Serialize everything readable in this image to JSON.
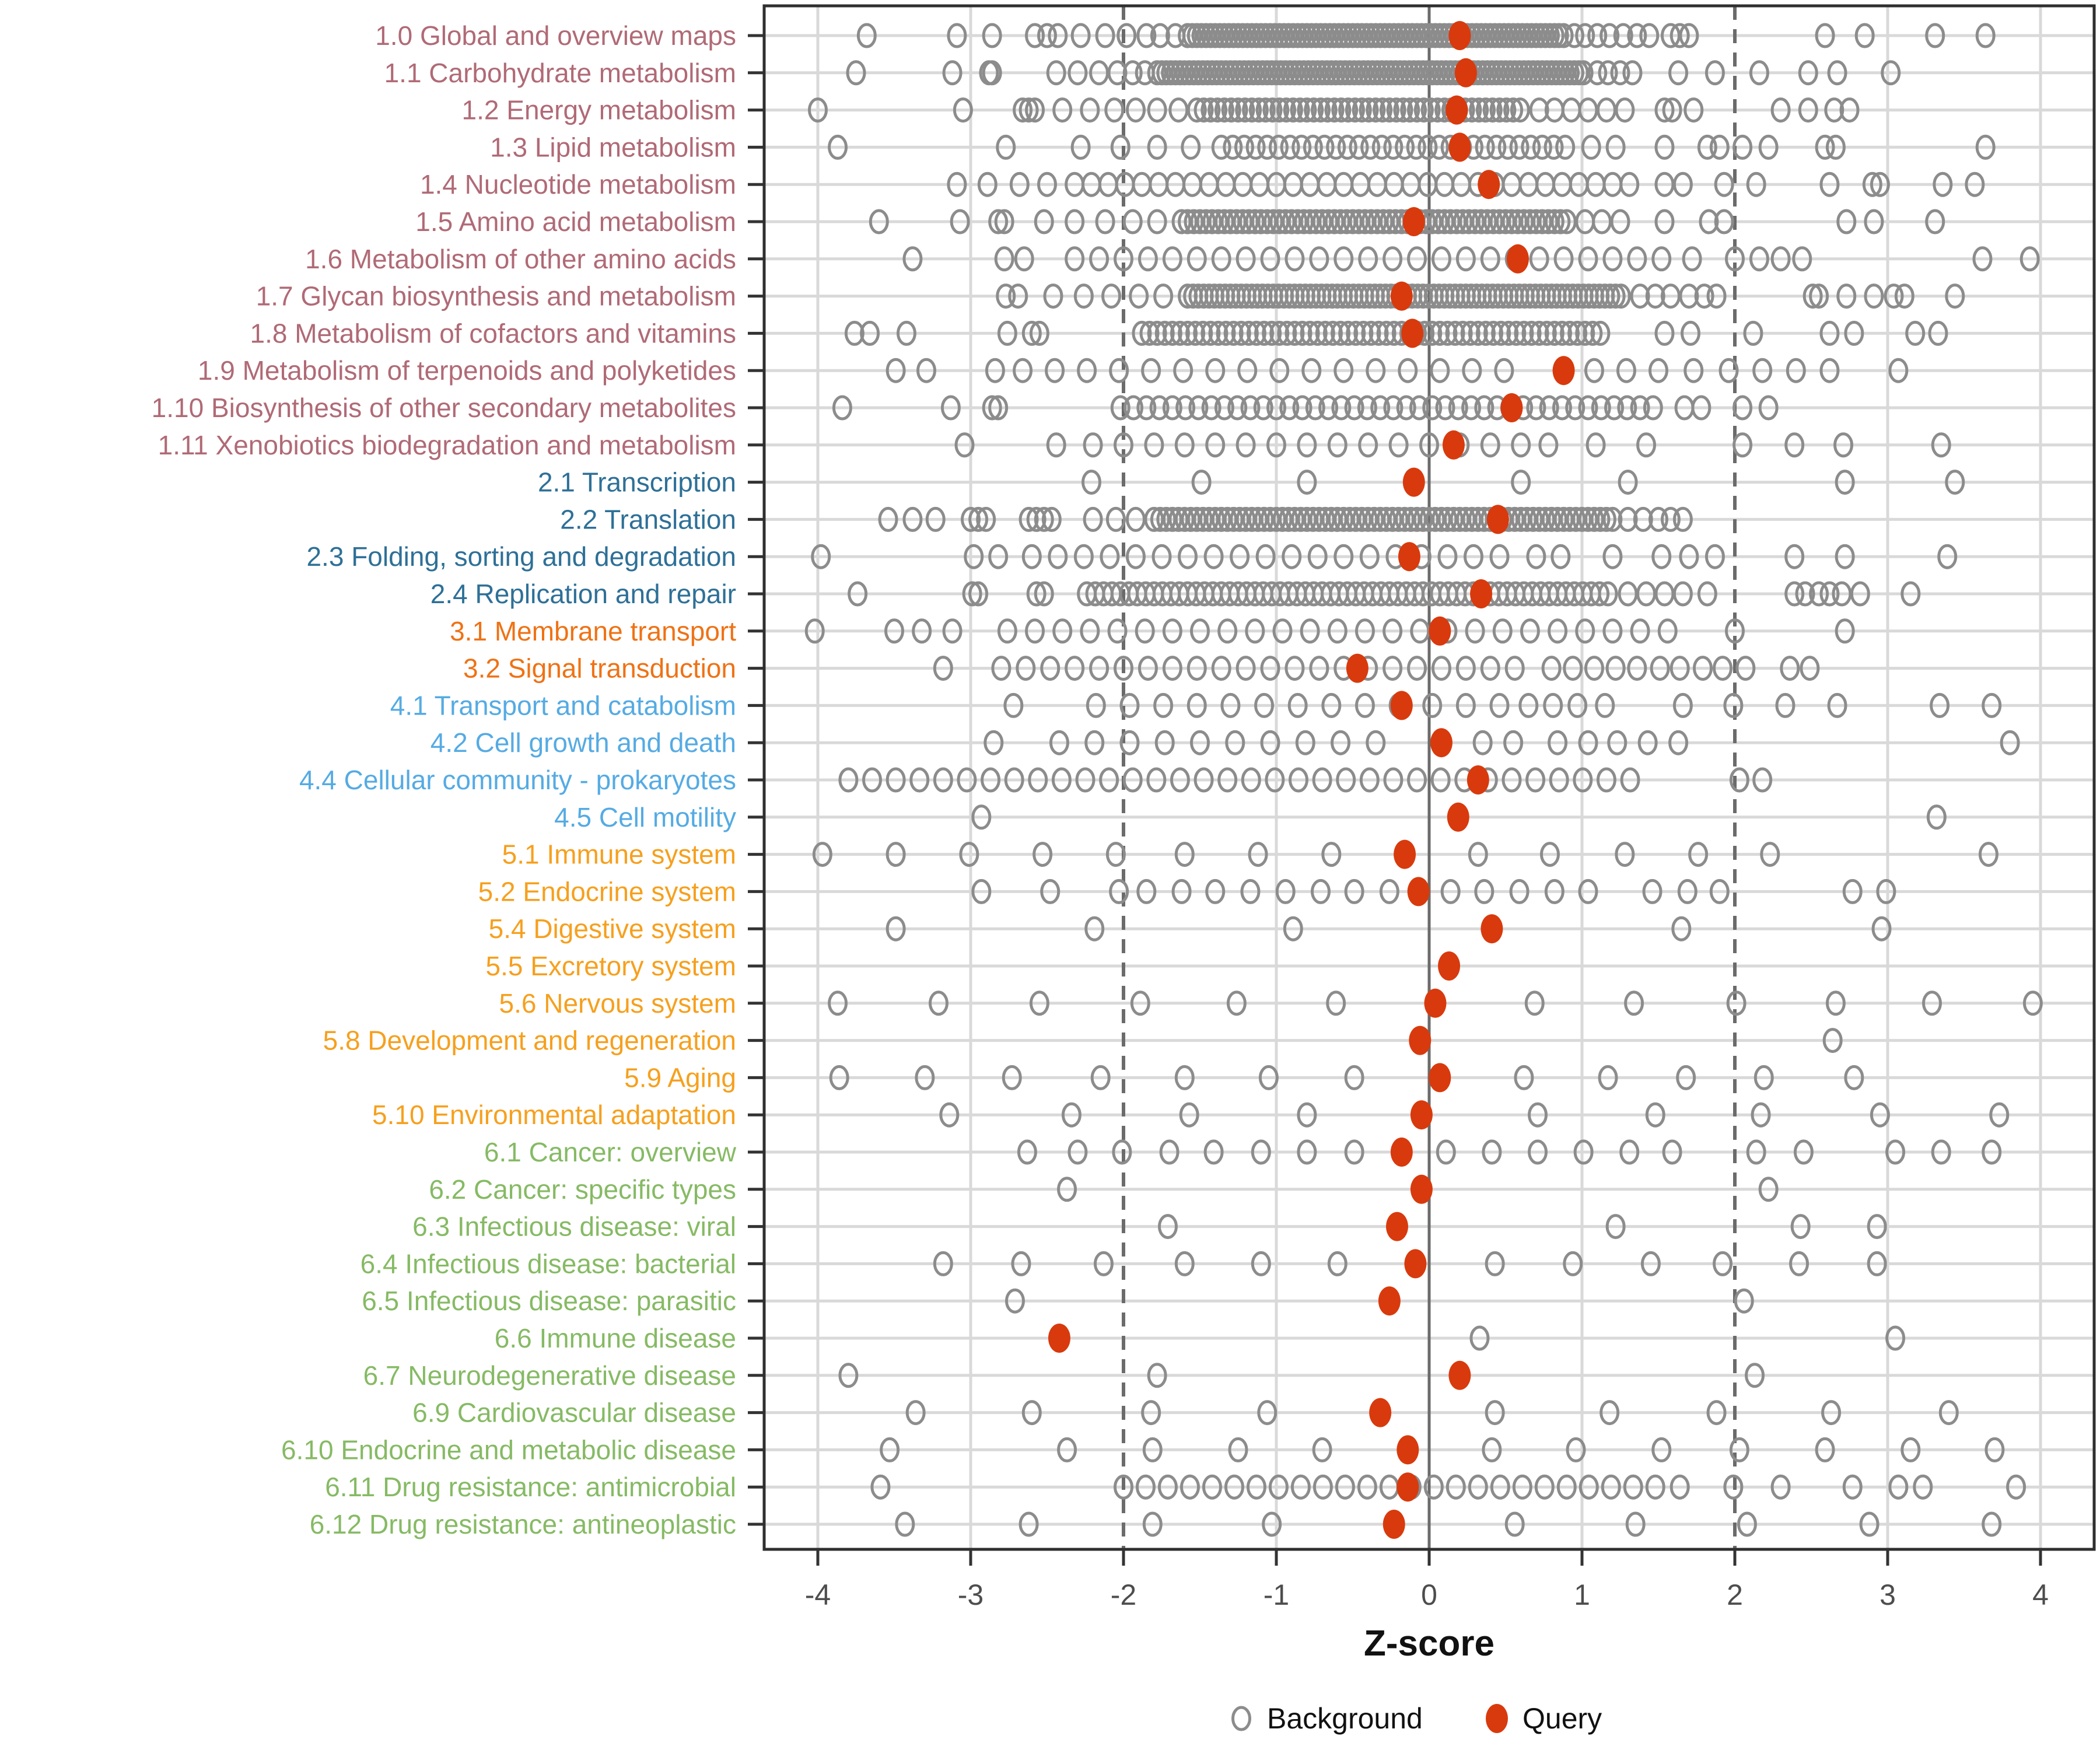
{
  "chart_data": {
    "type": "scatter",
    "title": "",
    "xlabel": "Z-score",
    "ylabel": "",
    "x_ticks": [
      -4,
      -3,
      -2,
      -1,
      0,
      1,
      2,
      3,
      4
    ],
    "xlim": [
      -4.35,
      4.35
    ],
    "grid": "on",
    "reference_lines": {
      "solid": [
        0
      ],
      "dashed": [
        -2,
        2
      ]
    },
    "legend": {
      "position": "bottom",
      "background_label": "Background",
      "query_label": "Query"
    },
    "colors": {
      "query": "#D83A0D",
      "background_stroke": "#8C8C8C",
      "grid_light": "#D9D9D9",
      "ref_line": "#6B6B6B",
      "axis_text": "#4D4D4D",
      "panel_border": "#2F2F2F",
      "group1": "#B06A76",
      "group2": "#2E7097",
      "group3": "#EF7215",
      "group4": "#55ABE3",
      "group5": "#F6A01E",
      "group6": "#86BA64"
    },
    "rows": [
      {
        "label": "1.0 Global and overview maps",
        "group": "group1",
        "query": 0.2,
        "bg": [
          -3.68,
          -3.09,
          -2.86,
          -2.58,
          -2.5,
          -2.43,
          -2.28,
          -2.12,
          -1.98,
          -1.85,
          -1.76,
          -1.66,
          {
            "f": -1.58,
            "t": 0.88,
            "s": 0.03
          },
          0.95,
          1.02,
          1.1,
          1.18,
          1.27,
          1.36,
          1.44,
          1.58,
          1.64,
          1.7,
          2.59,
          2.85,
          3.31,
          3.64
        ]
      },
      {
        "label": "1.1 Carbohydrate metabolism",
        "group": "group1",
        "query": 0.24,
        "bg": [
          -3.75,
          -3.12,
          -2.88,
          -2.86,
          -2.44,
          -2.3,
          -2.16,
          -2.04,
          -1.94,
          -1.86,
          {
            "f": -1.78,
            "t": 1.02,
            "s": 0.03
          },
          1.1,
          1.17,
          1.25,
          1.33,
          1.63,
          1.87,
          2.16,
          2.48,
          2.67,
          3.02
        ]
      },
      {
        "label": "1.2 Energy metabolism",
        "group": "group1",
        "query": 0.18,
        "bg": [
          -4.0,
          -3.05,
          -2.66,
          -2.62,
          -2.58,
          -2.4,
          -2.22,
          -2.06,
          -1.92,
          -1.78,
          -1.64,
          {
            "f": -1.52,
            "t": 0.62,
            "s": 0.045
          },
          0.72,
          0.82,
          0.93,
          1.04,
          1.16,
          1.28,
          1.54,
          1.59,
          1.73,
          2.3,
          2.48,
          2.65,
          2.75
        ]
      },
      {
        "label": "1.3 Lipid metabolism",
        "group": "group1",
        "query": 0.2,
        "bg": [
          -3.87,
          -2.77,
          -2.28,
          -2.02,
          -1.78,
          -1.56,
          {
            "f": -1.36,
            "t": 0.92,
            "s": 0.075
          },
          1.06,
          1.22,
          1.54,
          1.82,
          1.9,
          2.05,
          2.22,
          2.59,
          2.66,
          3.64
        ]
      },
      {
        "label": "1.4 Nucleotide metabolism",
        "group": "group1",
        "query": 0.39,
        "bg": [
          -3.09,
          -2.89,
          -2.68,
          -2.5,
          {
            "f": -2.32,
            "t": 1.32,
            "s": 0.11
          },
          1.54,
          1.66,
          1.93,
          2.14,
          2.62,
          2.9,
          2.95,
          3.36,
          3.57
        ]
      },
      {
        "label": "1.5 Amino acid metabolism",
        "group": "group1",
        "query": -0.1,
        "bg": [
          -3.6,
          -3.07,
          -2.82,
          -2.78,
          -2.52,
          -2.32,
          -2.12,
          -1.94,
          -1.78,
          {
            "f": -1.62,
            "t": 0.92,
            "s": 0.04
          },
          1.02,
          1.13,
          1.25,
          1.54,
          1.83,
          1.93,
          2.73,
          2.91,
          3.31
        ]
      },
      {
        "label": "1.6 Metabolism of other amino acids",
        "group": "group1",
        "query": 0.58,
        "bg": [
          -3.38,
          -2.78,
          -2.65,
          {
            "f": -2.32,
            "t": 1.52,
            "s": 0.16
          },
          1.72,
          2.0,
          2.16,
          2.3,
          2.44,
          3.62,
          3.93
        ]
      },
      {
        "label": "1.7 Glycan biosynthesis and metabolism",
        "group": "group1",
        "query": -0.18,
        "bg": [
          -2.77,
          -2.69,
          -2.46,
          -2.26,
          -2.08,
          -1.9,
          -1.74,
          {
            "f": -1.58,
            "t": 1.28,
            "s": 0.035
          },
          1.38,
          1.48,
          1.58,
          1.7,
          1.8,
          1.88,
          2.51,
          2.55,
          2.73,
          2.91,
          3.04,
          3.11,
          3.44
        ]
      },
      {
        "label": "1.8 Metabolism of cofactors and vitamins",
        "group": "group1",
        "query": -0.11,
        "bg": [
          -3.76,
          -3.66,
          -3.42,
          -2.76,
          -2.6,
          -2.55,
          {
            "f": -1.88,
            "t": 1.16,
            "s": 0.05
          },
          1.54,
          1.71,
          2.12,
          2.62,
          2.78,
          3.18,
          3.33
        ]
      },
      {
        "label": "1.9 Metabolism of terpenoids and polyketides",
        "group": "group1",
        "query": 0.88,
        "bg": [
          -3.49,
          -3.29,
          -2.84,
          {
            "f": -2.66,
            "t": 0.66,
            "s": 0.21
          },
          1.08,
          1.29,
          1.5,
          1.73,
          1.96,
          2.18,
          2.4,
          2.62,
          3.07
        ]
      },
      {
        "label": "1.10 Biosynthesis of other secondary metabolites",
        "group": "group1",
        "query": 0.54,
        "bg": [
          -3.84,
          -3.13,
          -2.86,
          -2.82,
          {
            "f": -2.02,
            "t": 1.54,
            "s": 0.085
          },
          1.67,
          1.78,
          2.05,
          2.22
        ]
      },
      {
        "label": "1.11 Xenobiotics biodegradation and metabolism",
        "group": "group1",
        "query": 0.16,
        "bg": [
          -3.04,
          -2.44,
          {
            "f": -2.2,
            "t": 0.6,
            "s": 0.2
          },
          0.78,
          1.09,
          1.42,
          2.05,
          2.39,
          2.71,
          3.35
        ]
      },
      {
        "label": "2.1 Transcription",
        "group": "group2",
        "query": -0.1,
        "bg": [
          -2.21,
          -1.49,
          -0.8,
          0.6,
          1.3,
          2.72,
          3.44
        ]
      },
      {
        "label": "2.2 Translation",
        "group": "group2",
        "query": 0.45,
        "bg": [
          -3.54,
          -3.38,
          -3.23,
          -3.0,
          -2.95,
          -2.9,
          -2.62,
          -2.57,
          -2.52,
          -2.47,
          -2.2,
          -2.05,
          -1.92,
          {
            "f": -1.8,
            "t": 1.22,
            "s": 0.04
          },
          1.3,
          1.4,
          1.5,
          1.58,
          1.66
        ]
      },
      {
        "label": "2.3 Folding, sorting and degradation",
        "group": "group2",
        "query": -0.13,
        "bg": [
          -3.98,
          -2.98,
          -2.82,
          {
            "f": -2.6,
            "t": 0.5,
            "s": 0.17
          },
          0.7,
          0.86,
          1.2,
          1.52,
          1.7,
          1.87,
          2.39,
          2.72,
          3.39
        ]
      },
      {
        "label": "2.4 Replication and repair",
        "group": "group2",
        "query": 0.34,
        "bg": [
          -3.74,
          -2.99,
          -2.95,
          -2.57,
          -2.52,
          {
            "f": -2.24,
            "t": 1.18,
            "s": 0.055
          },
          1.3,
          1.42,
          1.54,
          1.66,
          1.82,
          2.39,
          2.46,
          2.55,
          2.62,
          2.7,
          2.82,
          3.15
        ]
      },
      {
        "label": "3.1 Membrane transport",
        "group": "group3",
        "query": 0.07,
        "bg": [
          -4.02,
          -3.5,
          -3.32,
          -3.12,
          {
            "f": -2.76,
            "t": 1.64,
            "s": 0.18
          },
          2.0,
          2.72
        ]
      },
      {
        "label": "3.2 Signal transduction",
        "group": "group3",
        "query": -0.47,
        "bg": [
          -3.18,
          {
            "f": -2.8,
            "t": 0.62,
            "s": 0.16
          },
          0.8,
          0.94,
          1.08,
          1.22,
          1.36,
          1.51,
          1.64,
          1.79,
          1.92,
          2.07,
          2.36,
          2.49
        ]
      },
      {
        "label": "4.1 Transport and catabolism",
        "group": "group4",
        "query": -0.18,
        "bg": [
          -2.72,
          {
            "f": -2.18,
            "t": 0.5,
            "s": 0.22
          },
          0.65,
          0.81,
          0.97,
          1.15,
          1.66,
          1.99,
          2.33,
          2.67,
          3.34,
          3.68
        ]
      },
      {
        "label": "4.2 Cell growth and death",
        "group": "group4",
        "query": 0.08,
        "bg": [
          -2.85,
          {
            "f": -2.42,
            "t": -0.2,
            "s": 0.23
          },
          0.35,
          0.55,
          0.84,
          1.04,
          1.23,
          1.43,
          1.63,
          3.8
        ]
      },
      {
        "label": "4.4 Cellular community - prokaryotes",
        "group": "group4",
        "query": 0.32,
        "bg": [
          {
            "f": -3.8,
            "t": 1.44,
            "s": 0.155
          },
          2.03,
          2.18
        ]
      },
      {
        "label": "4.5 Cell motility",
        "group": "group4",
        "query": 0.19,
        "bg": [
          -2.93,
          3.32
        ]
      },
      {
        "label": "5.1 Immune system",
        "group": "group5",
        "query": -0.16,
        "bg": [
          -3.97,
          -3.49,
          -3.01,
          -2.53,
          -2.05,
          -1.6,
          -1.12,
          -0.64,
          0.32,
          0.79,
          1.28,
          1.76,
          2.23,
          3.66
        ]
      },
      {
        "label": "5.2 Endocrine system",
        "group": "group5",
        "query": -0.07,
        "bg": [
          -2.93,
          -2.48,
          -2.03,
          -1.85,
          -1.62,
          -1.4,
          -1.17,
          -0.94,
          -0.71,
          -0.49,
          -0.26,
          0.14,
          0.36,
          0.59,
          0.82,
          1.04,
          1.46,
          1.69,
          1.9,
          2.77,
          2.99
        ]
      },
      {
        "label": "5.4 Digestive system",
        "group": "group5",
        "query": 0.41,
        "bg": [
          -3.49,
          -2.19,
          -0.89,
          1.65,
          2.96
        ]
      },
      {
        "label": "5.5 Excretory system",
        "group": "group5",
        "query": 0.13,
        "bg": []
      },
      {
        "label": "5.6 Nervous system",
        "group": "group5",
        "query": 0.04,
        "bg": [
          -3.87,
          -3.21,
          -2.55,
          -1.89,
          -1.26,
          -0.61,
          0.69,
          1.34,
          2.01,
          2.66,
          3.29,
          3.95
        ]
      },
      {
        "label": "5.8 Development and regeneration",
        "group": "group5",
        "query": -0.06,
        "bg": [
          2.64
        ]
      },
      {
        "label": "5.9 Aging",
        "group": "group5",
        "query": 0.07,
        "bg": [
          -3.86,
          -3.3,
          -2.73,
          -2.15,
          -1.6,
          -1.05,
          -0.49,
          0.62,
          1.17,
          1.68,
          2.19,
          2.78
        ]
      },
      {
        "label": "5.10 Environmental adaptation",
        "group": "group5",
        "query": -0.05,
        "bg": [
          -3.14,
          -2.34,
          -1.57,
          -0.8,
          0.71,
          1.48,
          2.17,
          2.95,
          3.73
        ]
      },
      {
        "label": "6.1 Cancer: overview",
        "group": "group6",
        "query": -0.18,
        "bg": [
          -2.63,
          -2.3,
          -2.01,
          -1.7,
          -1.41,
          -1.1,
          -0.8,
          -0.49,
          0.11,
          0.41,
          0.71,
          1.01,
          1.31,
          1.59,
          2.14,
          2.45,
          3.05,
          3.35,
          3.68
        ]
      },
      {
        "label": "6.2 Cancer: specific types",
        "group": "group6",
        "query": -0.05,
        "bg": [
          -2.37,
          2.22
        ]
      },
      {
        "label": "6.3 Infectious disease: viral",
        "group": "group6",
        "query": -0.21,
        "bg": [
          -1.71,
          1.22,
          2.43,
          2.93
        ]
      },
      {
        "label": "6.4 Infectious disease: bacterial",
        "group": "group6",
        "query": -0.09,
        "bg": [
          -3.18,
          -2.67,
          -2.13,
          -1.6,
          -1.1,
          -0.6,
          0.43,
          0.94,
          1.45,
          1.92,
          2.42,
          2.93
        ]
      },
      {
        "label": "6.5 Infectious disease: parasitic",
        "group": "group6",
        "query": -0.26,
        "bg": [
          -2.71,
          2.06
        ]
      },
      {
        "label": "6.6 Immune disease",
        "group": "group6",
        "query": -2.42,
        "bg": [
          0.33,
          3.05
        ]
      },
      {
        "label": "6.7 Neurodegenerative disease",
        "group": "group6",
        "query": 0.2,
        "bg": [
          -3.8,
          -1.78,
          2.13
        ]
      },
      {
        "label": "6.9 Cardiovascular disease",
        "group": "group6",
        "query": -0.32,
        "bg": [
          -3.36,
          -2.6,
          -1.82,
          -1.06,
          0.43,
          1.18,
          1.88,
          2.63,
          3.4
        ]
      },
      {
        "label": "6.10 Endocrine and metabolic disease",
        "group": "group6",
        "query": -0.14,
        "bg": [
          -3.53,
          -2.37,
          -1.81,
          -1.25,
          -0.7,
          0.41,
          0.96,
          1.52,
          2.03,
          2.59,
          3.15,
          3.7
        ]
      },
      {
        "label": "6.11 Drug resistance: antimicrobial",
        "group": "group6",
        "query": -0.14,
        "bg": [
          -3.59,
          {
            "f": -2.0,
            "t": 1.5,
            "s": 0.145
          },
          1.64,
          1.99,
          2.3,
          2.77,
          3.07,
          3.23,
          3.84
        ]
      },
      {
        "label": "6.12 Drug resistance: antineoplastic",
        "group": "group6",
        "query": -0.23,
        "bg": [
          -3.43,
          -2.62,
          -1.81,
          -1.03,
          0.56,
          1.35,
          2.08,
          2.88,
          3.68
        ]
      }
    ]
  }
}
